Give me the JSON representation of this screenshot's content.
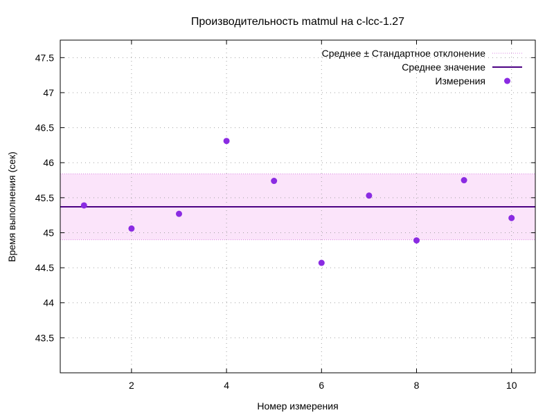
{
  "chart_data": {
    "type": "scatter",
    "title": "Производительность matmul на c-lcc-1.27",
    "xlabel": "Номер измерения",
    "ylabel": "Время выполнения (сек)",
    "xlim": [
      0.5,
      10.5
    ],
    "ylim": [
      43.0,
      47.75
    ],
    "xticks": [
      2,
      4,
      6,
      8,
      10
    ],
    "yticks": [
      43.5,
      44,
      44.5,
      45,
      45.5,
      46,
      46.5,
      47,
      47.5
    ],
    "grid": true,
    "legend_position": "top-right",
    "series": [
      {
        "name": "Измерения",
        "kind": "points",
        "color": "#8a2be2",
        "x": [
          1,
          2,
          3,
          4,
          5,
          6,
          7,
          8,
          9,
          10
        ],
        "y": [
          45.39,
          45.06,
          45.27,
          46.31,
          45.74,
          44.57,
          45.53,
          44.89,
          45.75,
          45.21
        ]
      },
      {
        "name": "Среднее значение",
        "kind": "hline",
        "color": "#4b0082",
        "y": 45.37
      },
      {
        "name": "Среднее ± Стандартное отклонение",
        "kind": "band",
        "color": "#d97fe0",
        "fill": "#fbe4fa",
        "lower": 44.9,
        "upper": 45.84
      }
    ],
    "legend_order": [
      "Среднее ± Стандартное отклонение",
      "Среднее значение",
      "Измерения"
    ]
  }
}
